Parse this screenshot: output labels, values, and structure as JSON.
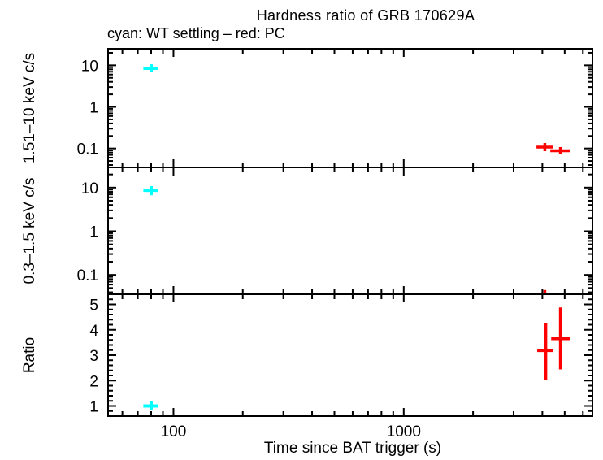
{
  "figure": {
    "title": "Hardness ratio of GRB 170629A",
    "subtitle": "cyan: WT settling – red: PC"
  },
  "colors": {
    "wt_settling": "#00ffff",
    "pc": "#ff0000",
    "axis": "#000000",
    "text": "#000000",
    "background": "#ffffff"
  },
  "chart_data": {
    "type": "scatter",
    "title": "Hardness ratio of GRB 170629A",
    "subtitle": "cyan: WT settling – red: PC",
    "xlabel": "Time since BAT trigger (s)",
    "xscale": "log",
    "xlim": [
      52,
      6600
    ],
    "x_major_ticks": [
      100,
      1000
    ],
    "x_major_tick_labels": [
      "100",
      "1000"
    ],
    "grid": false,
    "legend": [
      {
        "label": "WT settling",
        "color": "cyan"
      },
      {
        "label": "PC",
        "color": "red"
      }
    ],
    "panels": [
      {
        "id": "hard-rate",
        "ylabel": "1.51–10 keV c/s",
        "yscale": "log",
        "ylim": [
          0.035,
          25
        ],
        "y_major_ticks": [
          0.1,
          1,
          10
        ],
        "y_major_tick_labels": [
          "0.1",
          "1",
          "10"
        ],
        "series": [
          {
            "name": "WT settling",
            "color": "wt_settling",
            "points": [
              {
                "x": 80,
                "x_lo": 74,
                "x_hi": 86,
                "y": 8.5,
                "y_lo": 6.8,
                "y_hi": 10.6
              }
            ]
          },
          {
            "name": "PC",
            "color": "pc",
            "points": [
              {
                "x": 4100,
                "x_lo": 3770,
                "x_hi": 4450,
                "y": 0.108,
                "y_lo": 0.086,
                "y_hi": 0.135
              },
              {
                "x": 4790,
                "x_lo": 4330,
                "x_hi": 5260,
                "y": 0.088,
                "y_lo": 0.072,
                "y_hi": 0.108
              }
            ]
          }
        ]
      },
      {
        "id": "soft-rate",
        "ylabel": "0.3–1.5 keV c/s",
        "yscale": "log",
        "ylim": [
          0.036,
          29
        ],
        "y_major_ticks": [
          0.1,
          1,
          10
        ],
        "y_major_tick_labels": [
          "0.1",
          "1",
          "10"
        ],
        "series": [
          {
            "name": "WT settling",
            "color": "wt_settling",
            "points": [
              {
                "x": 80,
                "x_lo": 74,
                "x_hi": 86,
                "y": 8.7,
                "y_lo": 6.7,
                "y_hi": 10.8
              }
            ]
          },
          {
            "name": "PC",
            "color": "pc",
            "points": [
              {
                "x": 4100,
                "y_hi": 0.045,
                "offscale_low": true
              }
            ]
          }
        ]
      },
      {
        "id": "ratio",
        "ylabel": "Ratio",
        "yscale": "linear",
        "ylim": [
          0.6,
          5.4
        ],
        "y_major_ticks": [
          1,
          2,
          3,
          4,
          5
        ],
        "y_major_tick_labels": [
          "1",
          "2",
          "3",
          "4",
          "5"
        ],
        "y_minor_step": 0.2,
        "series": [
          {
            "name": "WT settling",
            "color": "wt_settling",
            "points": [
              {
                "x": 80,
                "x_lo": 74,
                "x_hi": 86,
                "y": 1.0,
                "y_lo": 0.85,
                "y_hi": 1.2
              }
            ]
          },
          {
            "name": "PC",
            "color": "pc",
            "points": [
              {
                "x": 4140,
                "x_lo": 3800,
                "x_hi": 4470,
                "y": 3.18,
                "y_lo": 2.03,
                "y_hi": 4.28
              },
              {
                "x": 4790,
                "x_lo": 4370,
                "x_hi": 5260,
                "y": 3.65,
                "y_lo": 2.44,
                "y_hi": 4.88
              }
            ]
          }
        ]
      }
    ]
  }
}
